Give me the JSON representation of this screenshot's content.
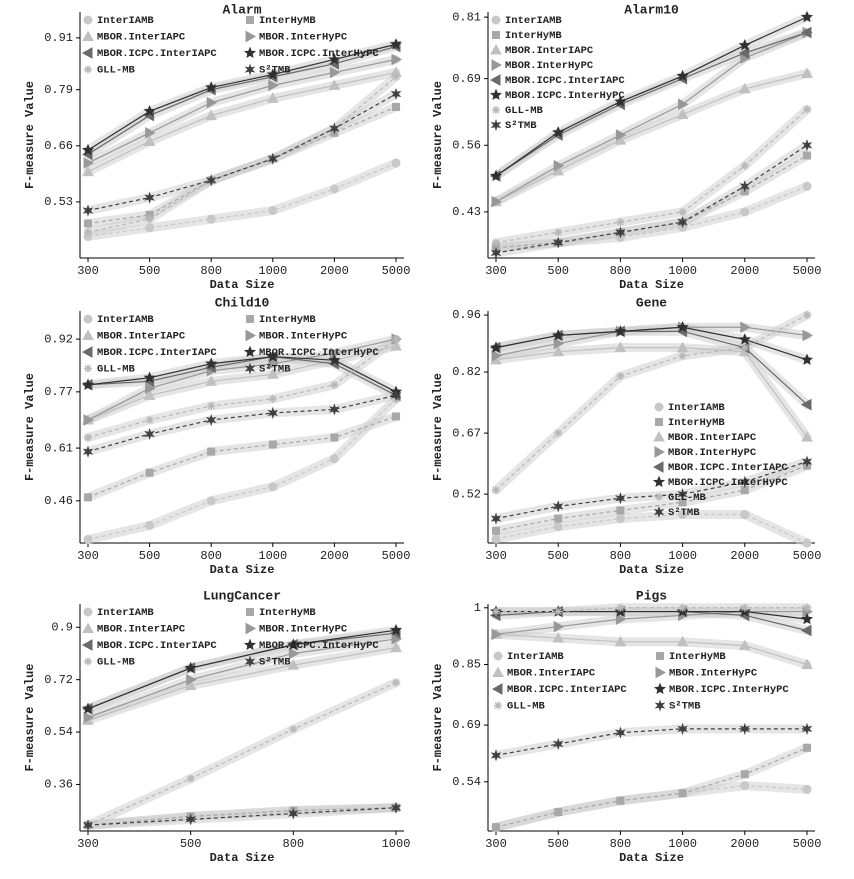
{
  "chart_data": [
    {
      "type": "line",
      "title": "Alarm",
      "xlabel": "Data Size",
      "ylabel": "F-measure Value",
      "categories": [
        "300",
        "500",
        "800",
        "1000",
        "2000",
        "5000"
      ],
      "ylim": [
        0.4,
        0.97
      ],
      "yticks": [
        0.53,
        0.66,
        0.79,
        0.91
      ],
      "legend": {
        "loc": "upper left",
        "ncol": 2
      },
      "series": [
        {
          "name": "InterIAMB",
          "color": "#c8c8c8",
          "marker": "circle",
          "dashed": true,
          "values": [
            0.45,
            0.47,
            0.49,
            0.51,
            0.56,
            0.62
          ]
        },
        {
          "name": "InterHyMB",
          "color": "#a8a8a8",
          "marker": "square",
          "dashed": true,
          "values": [
            0.48,
            0.5,
            0.58,
            0.63,
            0.69,
            0.75
          ]
        },
        {
          "name": "MBOR.InterIAPC",
          "color": "#c0c0c0",
          "marker": "triangle-up",
          "dashed": false,
          "values": [
            0.6,
            0.67,
            0.73,
            0.77,
            0.8,
            0.83
          ]
        },
        {
          "name": "MBOR.InterHyPC",
          "color": "#989898",
          "marker": "triangle-right",
          "dashed": false,
          "values": [
            0.62,
            0.69,
            0.76,
            0.8,
            0.83,
            0.86
          ]
        },
        {
          "name": "MBOR.ICPC.InterIAPC",
          "color": "#6a6a6a",
          "marker": "triangle-left",
          "dashed": false,
          "values": [
            0.64,
            0.73,
            0.79,
            0.82,
            0.85,
            0.89
          ]
        },
        {
          "name": "MBOR.ICPC.InterHyPC",
          "color": "#303030",
          "marker": "star",
          "dashed": false,
          "values": [
            0.65,
            0.74,
            0.795,
            0.825,
            0.86,
            0.895
          ]
        },
        {
          "name": "GLL-MB",
          "color": "#b8b8b8",
          "marker": "asterisk",
          "dashed": true,
          "values": [
            0.46,
            0.49,
            0.58,
            0.63,
            0.7,
            0.82
          ]
        },
        {
          "name": "S²TMB",
          "color": "#404040",
          "marker": "burst",
          "dashed": true,
          "values": [
            0.51,
            0.54,
            0.58,
            0.63,
            0.7,
            0.78
          ]
        }
      ]
    },
    {
      "type": "line",
      "title": "Alarm10",
      "xlabel": "Data Size",
      "ylabel": "F-measure Value",
      "categories": [
        "300",
        "500",
        "800",
        "1000",
        "2000",
        "5000"
      ],
      "ylim": [
        0.34,
        0.82
      ],
      "yticks": [
        0.43,
        0.56,
        0.69,
        0.81
      ],
      "legend": {
        "loc": "upper left",
        "ncol": 1
      },
      "series": [
        {
          "name": "InterIAMB",
          "color": "#c8c8c8",
          "marker": "circle",
          "dashed": true,
          "values": [
            0.36,
            0.37,
            0.38,
            0.4,
            0.43,
            0.48
          ]
        },
        {
          "name": "InterHyMB",
          "color": "#a8a8a8",
          "marker": "square",
          "dashed": true,
          "values": [
            0.36,
            0.37,
            0.39,
            0.41,
            0.47,
            0.54
          ]
        },
        {
          "name": "MBOR.InterIAPC",
          "color": "#c0c0c0",
          "marker": "triangle-up",
          "dashed": false,
          "values": [
            0.45,
            0.51,
            0.57,
            0.62,
            0.67,
            0.7
          ]
        },
        {
          "name": "MBOR.InterHyPC",
          "color": "#989898",
          "marker": "triangle-right",
          "dashed": false,
          "values": [
            0.45,
            0.52,
            0.58,
            0.64,
            0.73,
            0.78
          ]
        },
        {
          "name": "MBOR.ICPC.InterIAPC",
          "color": "#6a6a6a",
          "marker": "triangle-left",
          "dashed": false,
          "values": [
            0.5,
            0.58,
            0.64,
            0.69,
            0.74,
            0.78
          ]
        },
        {
          "name": "MBOR.ICPC.InterHyPC",
          "color": "#303030",
          "marker": "star",
          "dashed": false,
          "values": [
            0.5,
            0.585,
            0.645,
            0.695,
            0.755,
            0.81
          ]
        },
        {
          "name": "GLL-MB",
          "color": "#b8b8b8",
          "marker": "asterisk",
          "dashed": true,
          "values": [
            0.37,
            0.39,
            0.41,
            0.43,
            0.52,
            0.63
          ]
        },
        {
          "name": "S²TMB",
          "color": "#404040",
          "marker": "burst",
          "dashed": true,
          "values": [
            0.35,
            0.37,
            0.39,
            0.41,
            0.48,
            0.56
          ]
        }
      ]
    },
    {
      "type": "line",
      "title": "Child10",
      "xlabel": "Data Size",
      "ylabel": "F-measure Value",
      "categories": [
        "300",
        "500",
        "800",
        "1000",
        "2000",
        "5000"
      ],
      "ylim": [
        0.34,
        1.0
      ],
      "yticks": [
        0.46,
        0.61,
        0.77,
        0.92
      ],
      "legend": {
        "loc": "upper left",
        "ncol": 2
      },
      "series": [
        {
          "name": "InterIAMB",
          "color": "#c8c8c8",
          "marker": "circle",
          "dashed": true,
          "values": [
            0.35,
            0.39,
            0.46,
            0.5,
            0.58,
            0.75
          ]
        },
        {
          "name": "InterHyMB",
          "color": "#a8a8a8",
          "marker": "square",
          "dashed": true,
          "values": [
            0.47,
            0.54,
            0.6,
            0.62,
            0.64,
            0.7
          ]
        },
        {
          "name": "MBOR.InterIAPC",
          "color": "#c0c0c0",
          "marker": "triangle-up",
          "dashed": false,
          "values": [
            0.69,
            0.76,
            0.8,
            0.82,
            0.86,
            0.9
          ]
        },
        {
          "name": "MBOR.InterHyPC",
          "color": "#989898",
          "marker": "triangle-right",
          "dashed": false,
          "values": [
            0.69,
            0.78,
            0.83,
            0.85,
            0.88,
            0.92
          ]
        },
        {
          "name": "MBOR.ICPC.InterIAPC",
          "color": "#6a6a6a",
          "marker": "triangle-left",
          "dashed": false,
          "values": [
            0.79,
            0.8,
            0.84,
            0.87,
            0.85,
            0.76
          ]
        },
        {
          "name": "MBOR.ICPC.InterHyPC",
          "color": "#303030",
          "marker": "star",
          "dashed": false,
          "values": [
            0.79,
            0.81,
            0.85,
            0.87,
            0.86,
            0.77
          ]
        },
        {
          "name": "GLL-MB",
          "color": "#b8b8b8",
          "marker": "asterisk",
          "dashed": true,
          "values": [
            0.64,
            0.69,
            0.73,
            0.75,
            0.79,
            0.92
          ]
        },
        {
          "name": "S²TMB",
          "color": "#404040",
          "marker": "burst",
          "dashed": true,
          "values": [
            0.6,
            0.65,
            0.69,
            0.71,
            0.72,
            0.76
          ]
        }
      ]
    },
    {
      "type": "line",
      "title": "Gene",
      "xlabel": "Data Size",
      "ylabel": "F-measure Value",
      "categories": [
        "300",
        "500",
        "800",
        "1000",
        "2000",
        "5000"
      ],
      "ylim": [
        0.4,
        0.97
      ],
      "yticks": [
        0.52,
        0.67,
        0.82,
        0.96
      ],
      "legend": {
        "loc": "center right",
        "ncol": 1
      },
      "series": [
        {
          "name": "InterIAMB",
          "color": "#c8c8c8",
          "marker": "circle",
          "dashed": true,
          "values": [
            0.41,
            0.44,
            0.46,
            0.47,
            0.47,
            0.4
          ]
        },
        {
          "name": "InterHyMB",
          "color": "#a8a8a8",
          "marker": "square",
          "dashed": true,
          "values": [
            0.43,
            0.46,
            0.48,
            0.5,
            0.53,
            0.59
          ]
        },
        {
          "name": "MBOR.InterIAPC",
          "color": "#c0c0c0",
          "marker": "triangle-up",
          "dashed": false,
          "values": [
            0.85,
            0.87,
            0.88,
            0.88,
            0.87,
            0.66
          ]
        },
        {
          "name": "MBOR.InterHyPC",
          "color": "#989898",
          "marker": "triangle-right",
          "dashed": false,
          "values": [
            0.86,
            0.89,
            0.92,
            0.93,
            0.93,
            0.91
          ]
        },
        {
          "name": "MBOR.ICPC.InterIAPC",
          "color": "#6a6a6a",
          "marker": "triangle-left",
          "dashed": false,
          "values": [
            0.88,
            0.91,
            0.92,
            0.92,
            0.88,
            0.74
          ]
        },
        {
          "name": "MBOR.ICPC.InterHyPC",
          "color": "#303030",
          "marker": "star",
          "dashed": false,
          "values": [
            0.88,
            0.91,
            0.92,
            0.93,
            0.9,
            0.85
          ]
        },
        {
          "name": "GLL-MB",
          "color": "#b8b8b8",
          "marker": "asterisk",
          "dashed": true,
          "values": [
            0.53,
            0.67,
            0.81,
            0.86,
            0.88,
            0.96
          ]
        },
        {
          "name": "S²TMB",
          "color": "#404040",
          "marker": "burst",
          "dashed": true,
          "values": [
            0.46,
            0.49,
            0.51,
            0.52,
            0.55,
            0.6
          ]
        }
      ]
    },
    {
      "type": "line",
      "title": "LungCancer",
      "xlabel": "Data Size",
      "ylabel": "F-measure Value",
      "categories": [
        "300",
        "500",
        "800",
        "1000"
      ],
      "ylim": [
        0.2,
        0.98
      ],
      "yticks": [
        0.36,
        0.54,
        0.72,
        0.9
      ],
      "legend": {
        "loc": "upper left",
        "ncol": 2
      },
      "series": [
        {
          "name": "InterIAMB",
          "color": "#c8c8c8",
          "marker": "circle",
          "dashed": true,
          "values": [
            0.22,
            0.25,
            0.27,
            0.28
          ]
        },
        {
          "name": "InterHyMB",
          "color": "#a8a8a8",
          "marker": "square",
          "dashed": true,
          "values": [
            0.22,
            0.25,
            0.27,
            0.28
          ]
        },
        {
          "name": "MBOR.InterIAPC",
          "color": "#c0c0c0",
          "marker": "triangle-up",
          "dashed": false,
          "values": [
            0.58,
            0.7,
            0.77,
            0.83
          ]
        },
        {
          "name": "MBOR.InterHyPC",
          "color": "#989898",
          "marker": "triangle-right",
          "dashed": false,
          "values": [
            0.59,
            0.72,
            0.81,
            0.86
          ]
        },
        {
          "name": "MBOR.ICPC.InterIAPC",
          "color": "#6a6a6a",
          "marker": "triangle-left",
          "dashed": false,
          "values": [
            0.62,
            0.76,
            0.84,
            0.88
          ]
        },
        {
          "name": "MBOR.ICPC.InterHyPC",
          "color": "#303030",
          "marker": "star",
          "dashed": false,
          "values": [
            0.62,
            0.76,
            0.84,
            0.89
          ]
        },
        {
          "name": "GLL-MB",
          "color": "#b8b8b8",
          "marker": "asterisk",
          "dashed": true,
          "values": [
            0.22,
            0.38,
            0.55,
            0.71
          ]
        },
        {
          "name": "S²TMB",
          "color": "#404040",
          "marker": "burst",
          "dashed": true,
          "values": [
            0.22,
            0.24,
            0.26,
            0.28
          ]
        }
      ]
    },
    {
      "type": "line",
      "title": "Pigs",
      "xlabel": "Data Size",
      "ylabel": "F-measure Value",
      "categories": [
        "300",
        "500",
        "800",
        "1000",
        "2000",
        "5000"
      ],
      "ylim": [
        0.41,
        1.01
      ],
      "yticks": [
        0.54,
        0.69,
        0.85,
        1.0
      ],
      "legend": {
        "loc": "center left",
        "ncol": 2
      },
      "series": [
        {
          "name": "InterIAMB",
          "color": "#c8c8c8",
          "marker": "circle",
          "dashed": true,
          "values": [
            0.42,
            0.46,
            0.49,
            0.51,
            0.53,
            0.52
          ]
        },
        {
          "name": "InterHyMB",
          "color": "#a8a8a8",
          "marker": "square",
          "dashed": true,
          "values": [
            0.42,
            0.46,
            0.49,
            0.51,
            0.56,
            0.63
          ]
        },
        {
          "name": "MBOR.InterIAPC",
          "color": "#c0c0c0",
          "marker": "triangle-up",
          "dashed": false,
          "values": [
            0.93,
            0.92,
            0.91,
            0.91,
            0.9,
            0.85
          ]
        },
        {
          "name": "MBOR.InterHyPC",
          "color": "#989898",
          "marker": "triangle-right",
          "dashed": false,
          "values": [
            0.93,
            0.95,
            0.97,
            0.98,
            0.99,
            0.99
          ]
        },
        {
          "name": "MBOR.ICPC.InterIAPC",
          "color": "#6a6a6a",
          "marker": "triangle-left",
          "dashed": false,
          "values": [
            0.98,
            0.99,
            0.99,
            0.99,
            0.98,
            0.94
          ]
        },
        {
          "name": "MBOR.ICPC.InterHyPC",
          "color": "#303030",
          "marker": "star",
          "dashed": false,
          "values": [
            0.99,
            0.99,
            0.99,
            0.99,
            0.99,
            0.97
          ]
        },
        {
          "name": "GLL-MB",
          "color": "#b8b8b8",
          "marker": "asterisk",
          "dashed": true,
          "values": [
            0.99,
            0.99,
            1.0,
            1.0,
            1.0,
            1.0
          ]
        },
        {
          "name": "S²TMB",
          "color": "#404040",
          "marker": "burst",
          "dashed": true,
          "values": [
            0.61,
            0.64,
            0.67,
            0.68,
            0.68,
            0.68
          ]
        }
      ]
    }
  ]
}
